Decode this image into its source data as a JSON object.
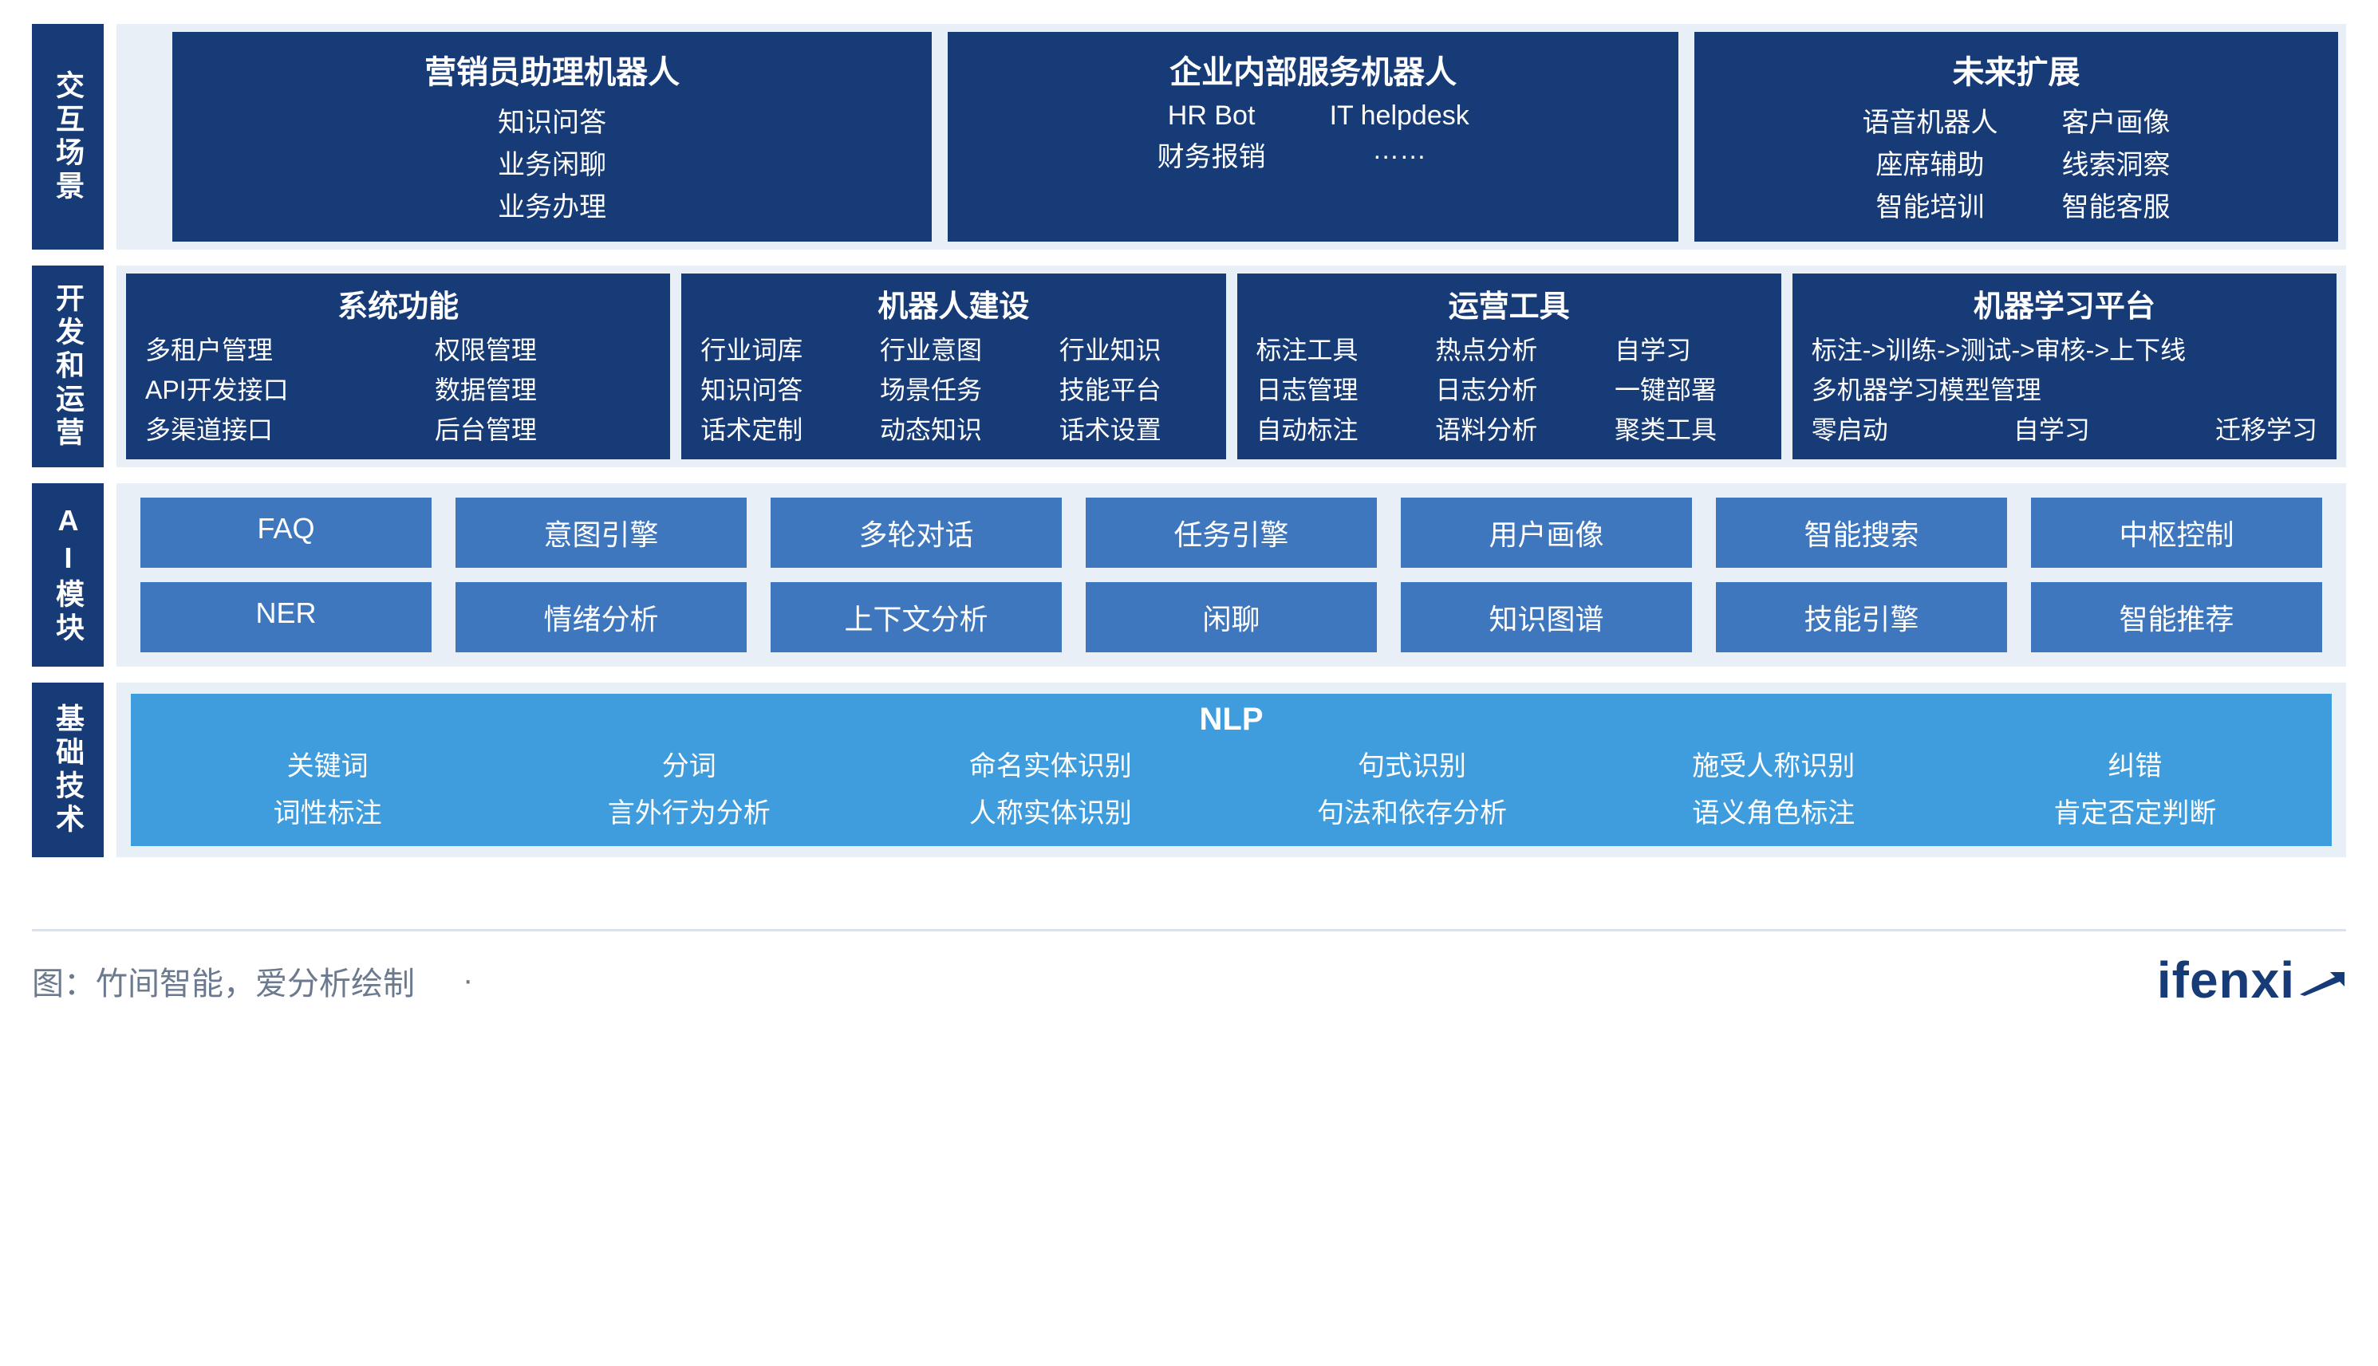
{
  "colors": {
    "dark_blue": "#163b76",
    "mid_blue": "#3f77bf",
    "light_blue": "#409ddd",
    "panel_bg": "#e9eff7",
    "footer_text": "#6c7a8f",
    "divider": "#d9e2ee",
    "white": "#ffffff"
  },
  "typography": {
    "side_label_fontsize": 36,
    "card_title_fontsize": 40,
    "body_fontsize_large": 34,
    "body_fontsize": 32,
    "chip_fontsize": 36,
    "footer_fontsize": 40,
    "logo_fontsize": 64
  },
  "rows": {
    "r1": {
      "side": "交互场景",
      "cards": [
        {
          "title": "营销员助理机器人",
          "columns": [
            [
              "知识问答",
              "业务闲聊",
              "业务办理"
            ]
          ],
          "flex": 1.2
        },
        {
          "title": "企业内部服务机器人",
          "columns": [
            [
              "HR Bot",
              "财务报销"
            ],
            [
              "IT helpdesk",
              "……"
            ]
          ],
          "flex": 1.15
        },
        {
          "title": "未来扩展",
          "columns": [
            [
              "语音机器人",
              "座席辅助",
              "智能培训"
            ],
            [
              "客户画像",
              "线索洞察",
              "智能客服"
            ]
          ],
          "flex": 1.0
        }
      ]
    },
    "r2": {
      "side": "开发和运营",
      "cards": [
        {
          "title": "系统功能",
          "cols": 2,
          "cells": [
            "多租户管理",
            "权限管理",
            "API开发接口",
            "数据管理",
            "多渠道接口",
            "后台管理"
          ]
        },
        {
          "title": "机器人建设",
          "cols": 3,
          "cells": [
            "行业词库",
            "行业意图",
            "行业知识",
            "知识问答",
            "场景任务",
            "技能平台",
            "话术定制",
            "动态知识",
            "话术设置"
          ]
        },
        {
          "title": "运营工具",
          "cols": 3,
          "cells": [
            "标注工具",
            "热点分析",
            "自学习",
            "日志管理",
            "日志分析",
            "一键部署",
            "自动标注",
            "语料分析",
            "聚类工具"
          ]
        },
        {
          "title": "机器学习平台",
          "custom": true,
          "line1": "标注->训练->测试->审核->上下线",
          "line2": "多机器学习模型管理",
          "line3": [
            "零启动",
            "自学习",
            "迁移学习"
          ]
        }
      ]
    },
    "r3": {
      "side": "AI模块",
      "lines": [
        [
          "FAQ",
          "意图引擎",
          "多轮对话",
          "任务引擎",
          "用户画像",
          "智能搜索",
          "中枢控制"
        ],
        [
          "NER",
          "情绪分析",
          "上下文分析",
          "闲聊",
          "知识图谱",
          "技能引擎",
          "智能推荐"
        ]
      ]
    },
    "r4": {
      "side": "基础技术",
      "title": "NLP",
      "grid": [
        [
          "关键词",
          "分词",
          "命名实体识别",
          "句式识别",
          "施受人称识别",
          "纠错"
        ],
        [
          "词性标注",
          "言外行为分析",
          "人称实体识别",
          "句法和依存分析",
          "语义角色标注",
          "肯定否定判断"
        ]
      ]
    }
  },
  "footer": {
    "source": "图：竹间智能，爱分析绘制",
    "dot": "·",
    "logo_text": "ifenxi"
  }
}
